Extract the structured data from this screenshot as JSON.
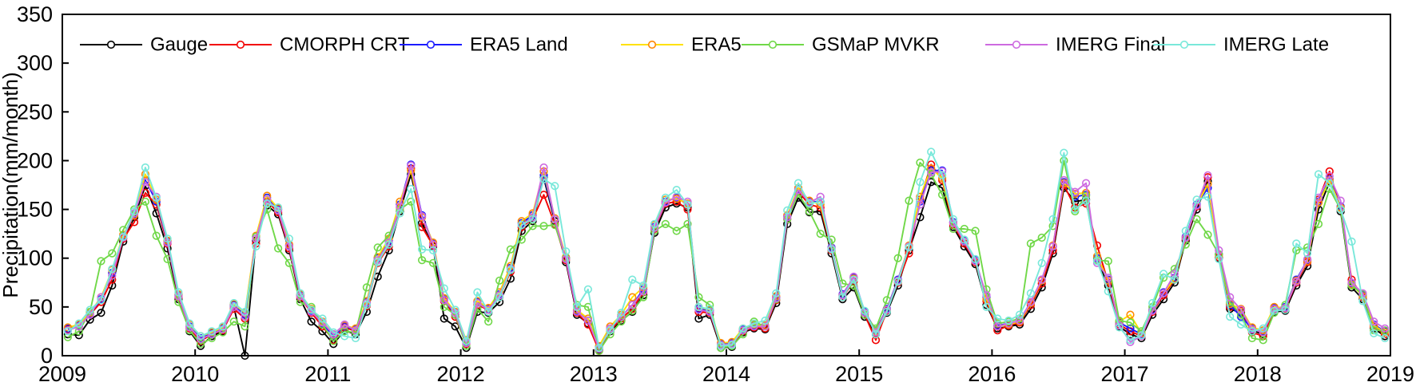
{
  "figure": {
    "type": "time-series line chart",
    "background": "#ffffff",
    "axis_color": "#000000"
  },
  "chart_data": {
    "type": "line",
    "title": "",
    "xlabel": "",
    "ylabel": "Precipitation(mm/month)",
    "ylim": [
      0,
      350
    ],
    "ytick_labels": [
      "0",
      "50",
      "100",
      "150",
      "200",
      "250",
      "300",
      "350"
    ],
    "yticks": [
      0,
      50,
      100,
      150,
      200,
      250,
      300,
      350
    ],
    "xlim": [
      2009,
      2019
    ],
    "xtick_labels": [
      "2009",
      "2010",
      "2011",
      "2012",
      "2013",
      "2014",
      "2015",
      "2016",
      "2017",
      "2018",
      "2019"
    ],
    "x_unit": "monthly values, Jan 2009 - Dec 2018 (120 points per series)",
    "grid": false,
    "legend_position": "top inside, single row, no box",
    "marker": "open circle",
    "series": [
      {
        "name": "Gauge",
        "line_color": "#000000",
        "marker_color": "#000000",
        "values": [
          22,
          21,
          37,
          44,
          72,
          117,
          142,
          174,
          146,
          110,
          58,
          25,
          10,
          20,
          25,
          50,
          0,
          118,
          154,
          145,
          108,
          58,
          35,
          25,
          12,
          26,
          22,
          45,
          81,
          108,
          148,
          186,
          136,
          112,
          38,
          30,
          8,
          45,
          44,
          55,
          79,
          128,
          138,
          182,
          138,
          96,
          42,
          33,
          6,
          25,
          36,
          45,
          62,
          126,
          152,
          156,
          152,
          38,
          42,
          8,
          9,
          24,
          28,
          27,
          54,
          135,
          162,
          147,
          148,
          105,
          58,
          70,
          40,
          22,
          44,
          72,
          108,
          142,
          178,
          172,
          132,
          112,
          94,
          52,
          28,
          30,
          32,
          48,
          70,
          105,
          172,
          158,
          160,
          98,
          72,
          30,
          22,
          18,
          42,
          58,
          75,
          118,
          150,
          179,
          100,
          48,
          44,
          26,
          22,
          45,
          46,
          72,
          92,
          150,
          178,
          148,
          70,
          58,
          28,
          20
        ]
      },
      {
        "name": "CMORPH CRT",
        "line_color": "#f20000",
        "marker_color": "#f20000",
        "values": [
          27,
          30,
          42,
          55,
          78,
          120,
          137,
          167,
          155,
          115,
          60,
          28,
          15,
          22,
          26,
          48,
          38,
          115,
          158,
          147,
          110,
          60,
          44,
          30,
          16,
          29,
          25,
          51,
          95,
          112,
          152,
          192,
          132,
          113,
          56,
          40,
          12,
          52,
          47,
          60,
          86,
          132,
          140,
          165,
          135,
          98,
          44,
          32,
          5,
          26,
          38,
          48,
          65,
          130,
          156,
          158,
          150,
          45,
          44,
          10,
          11,
          25,
          29,
          28,
          57,
          140,
          168,
          155,
          152,
          108,
          60,
          76,
          42,
          16,
          46,
          75,
          105,
          160,
          196,
          180,
          134,
          115,
          96,
          56,
          26,
          31,
          34,
          52,
          74,
          108,
          175,
          152,
          156,
          113,
          75,
          32,
          25,
          20,
          45,
          62,
          78,
          120,
          153,
          183,
          101,
          50,
          46,
          24,
          20,
          47,
          48,
          75,
          96,
          160,
          189,
          150,
          78,
          60,
          30,
          22
        ]
      },
      {
        "name": "ERA5 Land",
        "line_color": "#1a1aff",
        "marker_color": "#1a1aff",
        "values": [
          28,
          31,
          43,
          58,
          85,
          123,
          145,
          180,
          158,
          117,
          62,
          30,
          18,
          23,
          28,
          52,
          42,
          122,
          162,
          150,
          113,
          62,
          46,
          33,
          20,
          30,
          27,
          55,
          100,
          118,
          155,
          196,
          144,
          115,
          58,
          42,
          14,
          55,
          48,
          63,
          90,
          136,
          144,
          185,
          140,
          100,
          46,
          36,
          9,
          28,
          40,
          52,
          68,
          132,
          158,
          162,
          155,
          48,
          46,
          12,
          13,
          27,
          31,
          30,
          60,
          143,
          171,
          158,
          158,
          111,
          63,
          80,
          45,
          26,
          48,
          78,
          112,
          158,
          190,
          190,
          137,
          118,
          98,
          60,
          31,
          33,
          36,
          55,
          78,
          112,
          178,
          163,
          165,
          100,
          78,
          34,
          28,
          22,
          47,
          65,
          80,
          122,
          155,
          172,
          104,
          52,
          40,
          28,
          25,
          49,
          50,
          78,
          98,
          158,
          181,
          153,
          74,
          62,
          32,
          25
        ]
      },
      {
        "name": "ERA5",
        "line_color": "#ffe100",
        "marker_color": "#ff8800",
        "values": [
          29,
          32,
          44,
          60,
          88,
          124,
          144,
          186,
          160,
          118,
          63,
          32,
          20,
          24,
          29,
          53,
          44,
          123,
          164,
          151,
          114,
          63,
          48,
          35,
          22,
          31,
          28,
          56,
          101,
          120,
          158,
          190,
          142,
          116,
          59,
          45,
          16,
          56,
          49,
          65,
          92,
          138,
          146,
          189,
          141,
          101,
          47,
          38,
          10,
          30,
          42,
          60,
          70,
          134,
          160,
          161,
          156,
          50,
          47,
          13,
          14,
          28,
          32,
          31,
          61,
          144,
          172,
          159,
          155,
          110,
          62,
          79,
          44,
          25,
          47,
          77,
          113,
          163,
          192,
          182,
          136,
          117,
          97,
          58,
          30,
          32,
          35,
          54,
          77,
          113,
          177,
          166,
          167,
          102,
          77,
          35,
          42,
          23,
          46,
          64,
          79,
          121,
          154,
          176,
          103,
          53,
          48,
          29,
          26,
          50,
          49,
          77,
          97,
          157,
          180,
          152,
          73,
          61,
          31,
          24
        ]
      },
      {
        "name": "GSMaP MVKR",
        "line_color": "#70d848",
        "marker_color": "#70d848",
        "values": [
          19,
          25,
          45,
          97,
          105,
          129,
          150,
          158,
          123,
          99,
          55,
          26,
          12,
          18,
          24,
          35,
          30,
          122,
          150,
          110,
          95,
          55,
          50,
          32,
          15,
          25,
          24,
          70,
          111,
          123,
          150,
          158,
          98,
          95,
          50,
          42,
          10,
          48,
          35,
          77,
          109,
          119,
          133,
          133,
          134,
          100,
          52,
          50,
          5,
          22,
          35,
          46,
          60,
          128,
          135,
          128,
          135,
          60,
          52,
          8,
          10,
          22,
          35,
          30,
          58,
          140,
          166,
          148,
          125,
          119,
          74,
          72,
          42,
          28,
          57,
          100,
          159,
          198,
          186,
          165,
          130,
          130,
          128,
          68,
          33,
          35,
          38,
          115,
          121,
          133,
          200,
          148,
          164,
          98,
          97,
          36,
          34,
          25,
          50,
          80,
          89,
          114,
          140,
          124,
          104,
          55,
          42,
          18,
          16,
          44,
          52,
          108,
          111,
          135,
          171,
          150,
          72,
          63,
          26,
          26
        ]
      },
      {
        "name": "IMERG Final",
        "line_color": "#cd6ae0",
        "marker_color": "#cd6ae0",
        "values": [
          26,
          30,
          42,
          60,
          82,
          121,
          146,
          178,
          163,
          116,
          61,
          29,
          17,
          22,
          27,
          50,
          40,
          120,
          160,
          149,
          112,
          61,
          45,
          34,
          22,
          32,
          26,
          54,
          98,
          116,
          153,
          195,
          143,
          114,
          57,
          44,
          13,
          54,
          47,
          62,
          89,
          134,
          142,
          193,
          140,
          99,
          45,
          36,
          7,
          28,
          40,
          52,
          66,
          131,
          157,
          163,
          158,
          47,
          45,
          11,
          12,
          26,
          30,
          30,
          59,
          142,
          170,
          157,
          163,
          110,
          62,
          81,
          44,
          24,
          47,
          77,
          112,
          155,
          188,
          189,
          136,
          117,
          97,
          62,
          30,
          33,
          36,
          55,
          78,
          112,
          180,
          168,
          177,
          95,
          80,
          31,
          14,
          20,
          46,
          64,
          84,
          121,
          154,
          185,
          108,
          60,
          47,
          27,
          24,
          48,
          49,
          76,
          99,
          162,
          184,
          159,
          75,
          64,
          35,
          28
        ]
      },
      {
        "name": "IMERG Late",
        "line_color": "#79e8da",
        "marker_color": "#79e8da",
        "values": [
          25,
          33,
          47,
          57,
          89,
          122,
          148,
          193,
          162,
          120,
          65,
          33,
          20,
          25,
          30,
          54,
          45,
          112,
          156,
          152,
          120,
          64,
          47,
          38,
          24,
          20,
          18,
          52,
          96,
          114,
          146,
          171,
          109,
          108,
          69,
          47,
          15,
          65,
          45,
          60,
          88,
          134,
          140,
          181,
          174,
          107,
          50,
          68,
          8,
          26,
          44,
          78,
          72,
          135,
          162,
          170,
          155,
          50,
          48,
          10,
          11,
          28,
          33,
          36,
          64,
          149,
          177,
          156,
          158,
          109,
          60,
          78,
          46,
          22,
          45,
          76,
          111,
          178,
          209,
          185,
          140,
          119,
          99,
          50,
          38,
          36,
          42,
          64,
          95,
          140,
          208,
          150,
          159,
          97,
          66,
          29,
          16,
          21,
          54,
          84,
          78,
          128,
          160,
          163,
          99,
          40,
          32,
          25,
          28,
          46,
          47,
          115,
          105,
          186,
          177,
          150,
          117,
          56,
          23,
          18
        ]
      }
    ]
  }
}
